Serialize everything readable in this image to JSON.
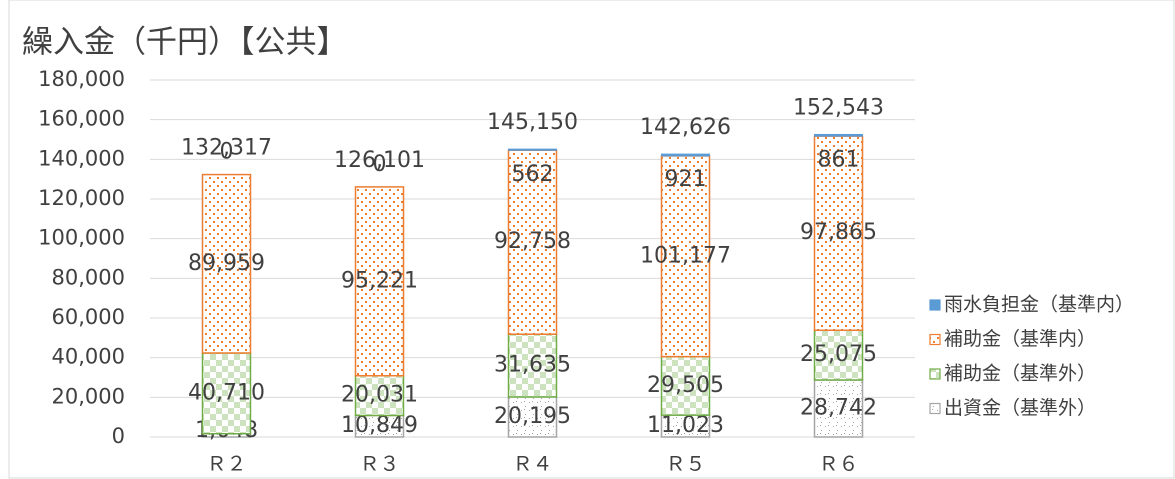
{
  "chart_data": {
    "type": "stacked_bar",
    "title": "繰入金（千円）【公共】",
    "categories": [
      "Ｒ２",
      "Ｒ３",
      "Ｒ４",
      "Ｒ５",
      "Ｒ６"
    ],
    "series": [
      {
        "name": "出資金（基準外）",
        "color": "#a5a5a5",
        "values": [
          1648,
          10849,
          20195,
          11023,
          28742
        ],
        "value_labels": [
          "1,648",
          "10,849",
          "20,195",
          "11,023",
          "28,742"
        ]
      },
      {
        "name": "補助金（基準外）",
        "color": "#70ad47",
        "values": [
          40710,
          20031,
          31635,
          29505,
          25075
        ],
        "value_labels": [
          "40,710",
          "20,031",
          "31,635",
          "29,505",
          "25,075"
        ]
      },
      {
        "name": "補助金（基準内）",
        "color": "#ed7d31",
        "values": [
          89959,
          95221,
          92758,
          101177,
          97865
        ],
        "value_labels": [
          "89,959",
          "95,221",
          "92,758",
          "101,177",
          "97,865"
        ]
      },
      {
        "name": "雨水負担金（基準内）",
        "color": "#5b9bd5",
        "values": [
          0,
          0,
          562,
          921,
          861
        ],
        "value_labels": [
          "0",
          "0",
          "562",
          "921",
          "861"
        ]
      }
    ],
    "totals": {
      "values": [
        132317,
        126101,
        145150,
        142626,
        152543
      ],
      "value_labels": [
        "132,317",
        "126,101",
        "145,150",
        "142,626",
        "152,543"
      ]
    },
    "ylim": [
      0,
      180000
    ],
    "yticks": [
      0,
      {
        "value": 20000,
        "label": "20,000"
      },
      {
        "value": 40000,
        "label": "40,000"
      },
      {
        "value": 60000,
        "label": "60,000"
      },
      {
        "value": 80000,
        "label": "80,000"
      },
      {
        "value": 100000,
        "label": "100,000"
      },
      {
        "value": 120000,
        "label": "120,000"
      },
      {
        "value": 140000,
        "label": "140,000"
      },
      {
        "value": 160000,
        "label": "160,000"
      },
      {
        "value": 180000,
        "label": "180,000"
      }
    ],
    "grid": true,
    "legend": "right"
  }
}
